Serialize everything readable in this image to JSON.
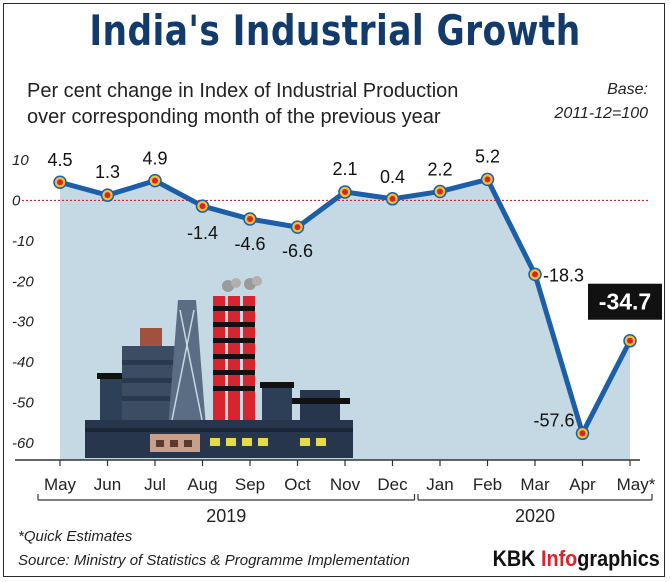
{
  "title": "India's Industrial Growth",
  "subtitle": [
    "Per cent change in Index of Industrial Production",
    "over corresponding month of the previous year"
  ],
  "base_note": [
    "Base:",
    "2011-12=100"
  ],
  "footnote": "*Quick Estimates",
  "source": "Source: Ministry of Statistics & Programme Implementation",
  "brand": {
    "prefix": "KBK ",
    "highlight": "Info",
    "suffix": "graphics"
  },
  "colors": {
    "line": "#1c5fa8",
    "area": "#c4d9e4",
    "zero_line": "#d8242c",
    "marker": "#d8242c",
    "highlight_box": "#111111",
    "title": "#123a6b"
  },
  "chart_data": {
    "type": "line",
    "categories": [
      "May",
      "Jun",
      "Jul",
      "Aug",
      "Sep",
      "Oct",
      "Nov",
      "Dec",
      "Jan",
      "Feb",
      "Mar",
      "Apr",
      "May*"
    ],
    "values": [
      4.5,
      1.3,
      4.9,
      -1.4,
      -4.6,
      -6.6,
      2.1,
      0.4,
      2.2,
      5.2,
      -18.3,
      -57.6,
      -34.7
    ],
    "value_labels": [
      "4.5",
      "1.3",
      "4.9",
      "-1.4",
      "-4.6",
      "-6.6",
      "2.1",
      "0.4",
      "2.2",
      "5.2",
      "-18.3",
      "-57.6",
      "-34.7"
    ],
    "y_ticks": [
      10,
      0,
      -10,
      -20,
      -30,
      -40,
      -50,
      -60
    ],
    "ylim": [
      -60,
      10
    ],
    "year_groups": [
      {
        "label": "2019",
        "from": 0,
        "to": 7
      },
      {
        "label": "2020",
        "from": 8,
        "to": 12
      }
    ],
    "highlight_index": 12,
    "zero_line": "dotted",
    "area_fill": true,
    "grid": false,
    "legend": "none"
  }
}
